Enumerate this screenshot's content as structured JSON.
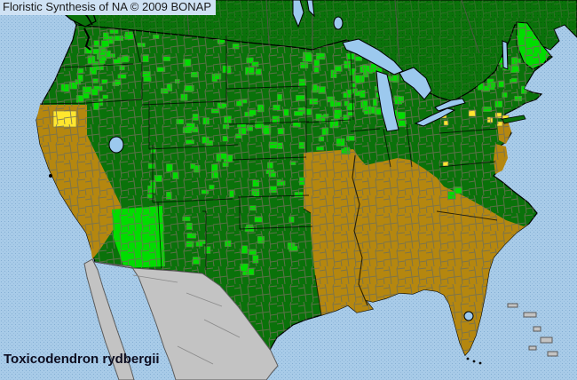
{
  "header": {
    "title": "Floristic Synthesis of NA © 2009 BONAP"
  },
  "footer": {
    "species": "Toxicodendron rydbergii"
  },
  "map": {
    "palette": {
      "ocean": "#a8cbe8",
      "lake_blue": "#9cc9ee",
      "present_state_green": "#0a720a",
      "present_county_green": "#00dd00",
      "rare_county_yellow": "#ffe62e",
      "absent_tan": "#b5870f",
      "outside_gray": "#c3c3c3",
      "county_line": "#6f6f58",
      "border_black": "#000000",
      "title_bg": "#cfe2f4"
    }
  }
}
